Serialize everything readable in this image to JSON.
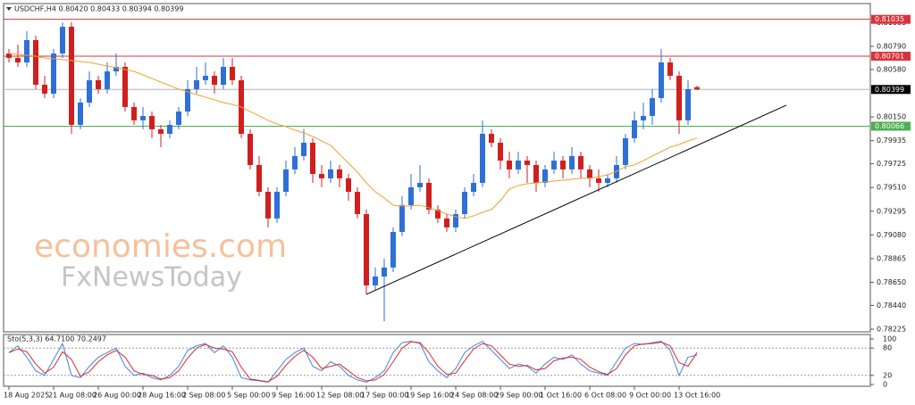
{
  "chart_data": {
    "type": "candlestick",
    "title": "USDCHF,H4  0.80420 0.80433 0.80394 0.80399",
    "watermark": [
      "economies.com",
      "FxNewsToday"
    ],
    "categories": [
      "18 Aug 2025",
      null,
      null,
      null,
      null,
      "21 Aug 08:00",
      null,
      null,
      null,
      null,
      "26 Aug 00:00",
      null,
      null,
      null,
      null,
      "28 Aug 16:00",
      null,
      null,
      null,
      null,
      "2 Sep 08:00",
      null,
      null,
      null,
      null,
      "5 Sep 00:00",
      null,
      null,
      null,
      null,
      "9 Sep 16:00",
      null,
      null,
      null,
      null,
      "12 Sep 08:00",
      null,
      null,
      null,
      null,
      "17 Sep 00:00",
      null,
      null,
      null,
      null,
      "19 Sep 16:00",
      null,
      null,
      null,
      null,
      "24 Sep 08:00",
      null,
      null,
      null,
      null,
      "29 Sep 00:00",
      null,
      null,
      null,
      null,
      "1 Oct 16:00",
      null,
      null,
      null,
      null,
      "6 Oct 08:00",
      null,
      null,
      null,
      null,
      "9 Oct 00:00",
      null,
      null,
      null,
      null,
      "13 Oct 16:00",
      null,
      null
    ],
    "candles": [
      [
        0.80725,
        0.80766,
        0.80644,
        0.80685
      ],
      [
        0.80685,
        0.80806,
        0.80604,
        0.80644
      ],
      [
        0.80644,
        0.80928,
        0.80604,
        0.80847
      ],
      [
        0.80847,
        0.80887,
        0.80402,
        0.80442
      ],
      [
        0.80442,
        0.80523,
        0.80321,
        0.80361
      ],
      [
        0.80361,
        0.80766,
        0.80321,
        0.80725
      ],
      [
        0.80725,
        0.81008,
        0.80685,
        0.80968
      ],
      [
        0.80968,
        0.81008,
        0.79997,
        0.80078
      ],
      [
        0.80078,
        0.80321,
        0.80038,
        0.8028
      ],
      [
        0.8028,
        0.80563,
        0.8024,
        0.80483
      ],
      [
        0.80483,
        0.80523,
        0.80361,
        0.80402
      ],
      [
        0.80402,
        0.80644,
        0.80361,
        0.80563
      ],
      [
        0.80563,
        0.80725,
        0.80523,
        0.80604
      ],
      [
        0.80604,
        0.80644,
        0.80199,
        0.8024
      ],
      [
        0.8024,
        0.8028,
        0.80078,
        0.80119
      ],
      [
        0.80119,
        0.8024,
        0.80038,
        0.80159
      ],
      [
        0.80159,
        0.80199,
        0.79957,
        0.80038
      ],
      [
        0.80038,
        0.80078,
        0.79876,
        0.79997
      ],
      [
        0.79997,
        0.80119,
        0.79957,
        0.80078
      ],
      [
        0.80078,
        0.8024,
        0.80038,
        0.80199
      ],
      [
        0.80199,
        0.80483,
        0.80159,
        0.80402
      ],
      [
        0.80402,
        0.80604,
        0.80361,
        0.80483
      ],
      [
        0.80483,
        0.80644,
        0.80442,
        0.80523
      ],
      [
        0.80523,
        0.80563,
        0.80361,
        0.80442
      ],
      [
        0.80442,
        0.80685,
        0.80402,
        0.80604
      ],
      [
        0.80604,
        0.80685,
        0.80442,
        0.80483
      ],
      [
        0.80483,
        0.80523,
        0.79957,
        0.79997
      ],
      [
        0.79997,
        0.80038,
        0.79674,
        0.79714
      ],
      [
        0.79714,
        0.79795,
        0.79431,
        0.79471
      ],
      [
        0.79471,
        0.79512,
        0.79148,
        0.79229
      ],
      [
        0.79229,
        0.79512,
        0.79188,
        0.79471
      ],
      [
        0.79471,
        0.79754,
        0.79431,
        0.79674
      ],
      [
        0.79674,
        0.79876,
        0.79633,
        0.79795
      ],
      [
        0.79795,
        0.80038,
        0.79754,
        0.79916
      ],
      [
        0.79916,
        0.79957,
        0.79552,
        0.79633
      ],
      [
        0.79633,
        0.79714,
        0.79512,
        0.79593
      ],
      [
        0.79593,
        0.79754,
        0.79552,
        0.79674
      ],
      [
        0.79674,
        0.79714,
        0.79512,
        0.79593
      ],
      [
        0.79593,
        0.79633,
        0.7939,
        0.79471
      ],
      [
        0.79471,
        0.79512,
        0.79229,
        0.79269
      ],
      [
        0.79269,
        0.7931,
        0.78541,
        0.78622
      ],
      [
        0.78622,
        0.78784,
        0.78582,
        0.78703
      ],
      [
        0.78703,
        0.78865,
        0.78298,
        0.78784
      ],
      [
        0.78784,
        0.79148,
        0.78743,
        0.79107
      ],
      [
        0.79107,
        0.79431,
        0.79067,
        0.7935
      ],
      [
        0.7935,
        0.79633,
        0.7931,
        0.79512
      ],
      [
        0.79512,
        0.79714,
        0.79471,
        0.79552
      ],
      [
        0.79552,
        0.79593,
        0.79269,
        0.7931
      ],
      [
        0.7931,
        0.7935,
        0.79188,
        0.79229
      ],
      [
        0.79229,
        0.79269,
        0.79107,
        0.79148
      ],
      [
        0.79148,
        0.7931,
        0.79107,
        0.79269
      ],
      [
        0.79269,
        0.79512,
        0.79229,
        0.79471
      ],
      [
        0.79471,
        0.79633,
        0.79431,
        0.79552
      ],
      [
        0.79552,
        0.80119,
        0.79512,
        0.79997
      ],
      [
        0.79997,
        0.80038,
        0.79876,
        0.79916
      ],
      [
        0.79916,
        0.79957,
        0.79674,
        0.79754
      ],
      [
        0.79754,
        0.79835,
        0.79593,
        0.79674
      ],
      [
        0.79674,
        0.79835,
        0.79633,
        0.79754
      ],
      [
        0.79754,
        0.79795,
        0.79552,
        0.79714
      ],
      [
        0.79714,
        0.79754,
        0.79471,
        0.79552
      ],
      [
        0.79552,
        0.79714,
        0.79512,
        0.79674
      ],
      [
        0.79674,
        0.79835,
        0.79633,
        0.79754
      ],
      [
        0.79754,
        0.79795,
        0.79593,
        0.79674
      ],
      [
        0.79674,
        0.79876,
        0.79633,
        0.79795
      ],
      [
        0.79795,
        0.79835,
        0.79593,
        0.79674
      ],
      [
        0.79674,
        0.79714,
        0.79512,
        0.79593
      ],
      [
        0.79593,
        0.79674,
        0.79471,
        0.79552
      ],
      [
        0.79552,
        0.79633,
        0.79512,
        0.79593
      ],
      [
        0.79593,
        0.79795,
        0.79552,
        0.79714
      ],
      [
        0.79714,
        0.79997,
        0.79674,
        0.79957
      ],
      [
        0.79957,
        0.80199,
        0.79916,
        0.80119
      ],
      [
        0.80119,
        0.8028,
        0.80038,
        0.80159
      ],
      [
        0.80159,
        0.80402,
        0.80078,
        0.80321
      ],
      [
        0.80321,
        0.80766,
        0.8028,
        0.80644
      ],
      [
        0.80644,
        0.80685,
        0.80483,
        0.80523
      ],
      [
        0.80523,
        0.80563,
        0.79997,
        0.80119
      ],
      [
        0.80119,
        0.80483,
        0.80078,
        0.80402
      ],
      [
        0.8042,
        0.80433,
        0.80394,
        0.80399
      ]
    ],
    "up_color": "#2f6fd6",
    "down_color": "#d01f1f",
    "ma": {
      "color": "#f0a030",
      "values": [
        0.80725,
        0.80717,
        0.80709,
        0.80701,
        0.80685,
        0.80677,
        0.80669,
        0.80661,
        0.80652,
        0.80644,
        0.80628,
        0.80612,
        0.80596,
        0.8058,
        0.80563,
        0.80531,
        0.80499,
        0.80466,
        0.80434,
        0.80402,
        0.80377,
        0.80353,
        0.80329,
        0.80305,
        0.8028,
        0.80264,
        0.8024,
        0.80199,
        0.80159,
        0.80119,
        0.80086,
        0.80062,
        0.8003,
        0.80005,
        0.79973,
        0.79932,
        0.79892,
        0.79811,
        0.7973,
        0.79649,
        0.79552,
        0.79471,
        0.79415,
        0.7935,
        0.79342,
        0.79342,
        0.7935,
        0.79326,
        0.79301,
        0.79269,
        0.79245,
        0.79229,
        0.79253,
        0.79285,
        0.7931,
        0.7939,
        0.79496,
        0.79528,
        0.79544,
        0.79552,
        0.7956,
        0.79568,
        0.79576,
        0.79584,
        0.79593,
        0.79593,
        0.79609,
        0.79625,
        0.79657,
        0.79698,
        0.79714,
        0.79754,
        0.79795,
        0.79835,
        0.79876,
        0.799,
        0.79932,
        0.79957
      ]
    },
    "trendline": {
      "x": [
        40,
        87
      ],
      "y": [
        0.78541,
        0.80256
      ],
      "color": "#000000"
    },
    "levels": [
      {
        "value": 0.81035,
        "color": "#d9343b"
      },
      {
        "value": 0.80701,
        "color": "#d9343b"
      },
      {
        "value": 0.80066,
        "color": "#4caf50"
      },
      {
        "value": 0.80399,
        "color": "#000000"
      }
    ],
    "ylim": [
      0.78217,
      0.8117
    ],
    "yticks": [
      0.81005,
      {
        "value": 0.8079,
        "label": "0.80790"
      },
      {
        "value": 0.8058,
        "label": "0.80580"
      },
      {
        "value": 0.8015,
        "label": "0.80150"
      },
      0.79935,
      0.79725,
      {
        "value": 0.7951,
        "label": "0.79510"
      },
      0.79295,
      {
        "value": 0.7908,
        "label": "0.79080"
      },
      0.78865,
      {
        "value": 0.7865,
        "label": "0.78650"
      },
      {
        "value": 0.7844,
        "label": "0.78440"
      },
      0.78225
    ],
    "indicator": {
      "title": "Sto(5,3,3) 64.7100 70.2497",
      "ylim": [
        0,
        100
      ],
      "yticks": [
        100,
        80,
        20,
        0
      ],
      "levels": [
        80,
        20
      ],
      "series": [
        {
          "color": "#3f86e0",
          "values": [
            70,
            85,
            60,
            30,
            20,
            55,
            90,
            20,
            15,
            40,
            60,
            70,
            80,
            40,
            20,
            25,
            15,
            10,
            20,
            40,
            75,
            85,
            90,
            70,
            85,
            60,
            15,
            10,
            8,
            5,
            30,
            55,
            70,
            80,
            40,
            30,
            50,
            40,
            20,
            10,
            5,
            15,
            30,
            70,
            92,
            95,
            90,
            50,
            30,
            15,
            35,
            70,
            85,
            95,
            75,
            55,
            35,
            45,
            40,
            25,
            45,
            60,
            55,
            65,
            45,
            30,
            25,
            20,
            50,
            80,
            90,
            88,
            92,
            95,
            75,
            20,
            60,
            64.71
          ]
        },
        {
          "color": "#e02828",
          "values": [
            70,
            78,
            72,
            45,
            25,
            38,
            72,
            55,
            18,
            28,
            50,
            65,
            75,
            60,
            30,
            22,
            20,
            12,
            15,
            30,
            58,
            80,
            88,
            80,
            78,
            72,
            38,
            12,
            9,
            6,
            18,
            42,
            62,
            75,
            60,
            35,
            40,
            45,
            30,
            15,
            8,
            10,
            22,
            50,
            80,
            94,
            92,
            70,
            40,
            22,
            25,
            52,
            78,
            90,
            85,
            65,
            45,
            40,
            42,
            32,
            35,
            52,
            58,
            60,
            55,
            38,
            28,
            22,
            35,
            65,
            85,
            89,
            90,
            93,
            85,
            48,
            40,
            70.2497
          ]
        }
      ]
    }
  }
}
